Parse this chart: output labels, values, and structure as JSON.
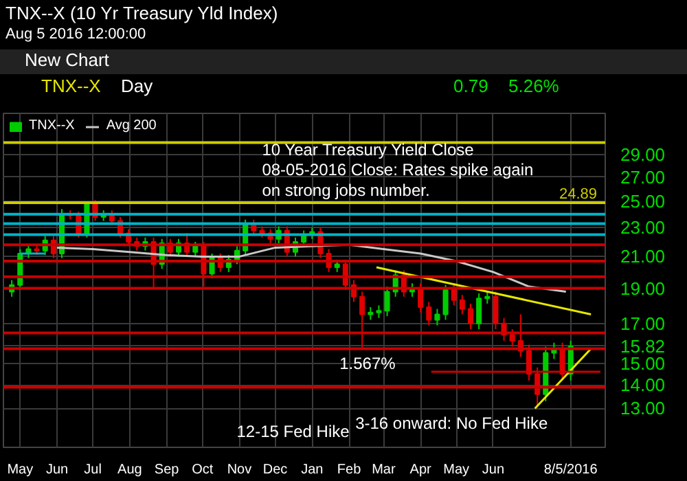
{
  "chart_data": {
    "type": "candlestick",
    "title": "TNX--X (10 Yr Treasury Yld Index)",
    "subtitle": "Aug 5 2016 12:00:00",
    "annotations": [
      "New Chart",
      "TNX--X",
      "Day",
      "0.79",
      "5.26%",
      "10 Year Treasury Yield Close",
      "08-05-2016 Close: Rates spike again",
      "on strong jobs number.",
      "1.567%",
      "12-15 Fed Hike",
      "3-16 onward: No Fed Hike"
    ],
    "series": [
      {
        "name": "TNX--X",
        "x": [
          "2015-04-24",
          "2015-05-01",
          "2015-05-08",
          "2015-05-15",
          "2015-05-22",
          "2015-05-29",
          "2015-06-05",
          "2015-06-12",
          "2015-06-19",
          "2015-06-26",
          "2015-07-03",
          "2015-07-10",
          "2015-07-17",
          "2015-07-24",
          "2015-07-31",
          "2015-08-07",
          "2015-08-14",
          "2015-08-21",
          "2015-08-28",
          "2015-09-04",
          "2015-09-11",
          "2015-09-18",
          "2015-09-25",
          "2015-10-02",
          "2015-10-09",
          "2015-10-16",
          "2015-10-23",
          "2015-10-30",
          "2015-11-06",
          "2015-11-13",
          "2015-11-20",
          "2015-11-27",
          "2015-12-04",
          "2015-12-11",
          "2015-12-18",
          "2015-12-25",
          "2016-01-01",
          "2016-01-08",
          "2016-01-15",
          "2016-01-22",
          "2016-01-29",
          "2016-02-05",
          "2016-02-12",
          "2016-02-19",
          "2016-02-26",
          "2016-03-04",
          "2016-03-11",
          "2016-03-18",
          "2016-03-25",
          "2016-04-01",
          "2016-04-08",
          "2016-04-15",
          "2016-04-22",
          "2016-04-29",
          "2016-05-06",
          "2016-05-13",
          "2016-05-20",
          "2016-05-27",
          "2016-06-03",
          "2016-06-10",
          "2016-06-17",
          "2016-06-24",
          "2016-07-01",
          "2016-07-08",
          "2016-07-15",
          "2016-07-22",
          "2016-07-29",
          "2016-08-05"
        ],
        "ohlc": [
          [
            18.8,
            19.5,
            18.5,
            19.2
          ],
          [
            19.2,
            21.5,
            18.9,
            21.2
          ],
          [
            21.2,
            21.8,
            20.9,
            21.5
          ],
          [
            21.5,
            21.8,
            21.1,
            21.4
          ],
          [
            21.4,
            22.4,
            21.1,
            22.1
          ],
          [
            22.1,
            22.4,
            20.9,
            21.2
          ],
          [
            21.2,
            24.4,
            20.9,
            24.0
          ],
          [
            24.0,
            24.3,
            23.6,
            23.9
          ],
          [
            23.9,
            24.2,
            22.3,
            22.6
          ],
          [
            22.6,
            25.0,
            22.3,
            24.8
          ],
          [
            24.8,
            25.1,
            23.5,
            23.8
          ],
          [
            23.8,
            24.3,
            23.5,
            24.0
          ],
          [
            24.0,
            24.3,
            23.2,
            23.5
          ],
          [
            23.5,
            23.8,
            22.3,
            22.6
          ],
          [
            22.6,
            22.9,
            21.7,
            22.0
          ],
          [
            22.0,
            22.3,
            21.4,
            21.7
          ],
          [
            21.7,
            22.3,
            21.4,
            22.0
          ],
          [
            22.0,
            22.3,
            19.0,
            20.5
          ],
          [
            20.5,
            22.2,
            20.2,
            21.9
          ],
          [
            21.9,
            22.2,
            21.0,
            21.3
          ],
          [
            21.3,
            22.2,
            21.0,
            21.9
          ],
          [
            21.9,
            22.6,
            21.0,
            21.3
          ],
          [
            21.3,
            22.0,
            21.0,
            21.7
          ],
          [
            21.7,
            22.0,
            19.1,
            19.9
          ],
          [
            19.9,
            21.2,
            19.6,
            20.9
          ],
          [
            20.9,
            21.2,
            20.0,
            20.3
          ],
          [
            20.3,
            21.1,
            20.0,
            20.8
          ],
          [
            20.8,
            21.7,
            20.5,
            21.4
          ],
          [
            21.4,
            23.6,
            21.1,
            23.3
          ],
          [
            23.3,
            23.6,
            22.5,
            22.8
          ],
          [
            22.8,
            23.1,
            22.3,
            22.6
          ],
          [
            22.6,
            22.9,
            21.9,
            22.2
          ],
          [
            22.2,
            23.1,
            21.9,
            22.8
          ],
          [
            22.8,
            23.1,
            21.0,
            21.3
          ],
          [
            21.3,
            22.3,
            21.0,
            22.0
          ],
          [
            22.0,
            22.8,
            21.7,
            22.5
          ],
          [
            22.5,
            23.0,
            22.2,
            22.7
          ],
          [
            22.7,
            23.0,
            20.9,
            21.2
          ],
          [
            21.2,
            21.5,
            20.0,
            20.3
          ],
          [
            20.3,
            20.8,
            20.0,
            20.5
          ],
          [
            20.5,
            20.8,
            18.9,
            19.2
          ],
          [
            19.2,
            19.5,
            18.2,
            18.5
          ],
          [
            18.5,
            18.8,
            15.67,
            17.5
          ],
          [
            17.5,
            17.9,
            17.2,
            17.6
          ],
          [
            17.6,
            18.0,
            17.3,
            17.7
          ],
          [
            17.7,
            19.1,
            17.4,
            18.8
          ],
          [
            18.8,
            20.1,
            18.5,
            19.8
          ],
          [
            19.8,
            20.1,
            18.5,
            18.8
          ],
          [
            18.8,
            19.3,
            18.5,
            19.0
          ],
          [
            19.0,
            19.3,
            17.6,
            17.9
          ],
          [
            17.9,
            18.2,
            16.9,
            17.2
          ],
          [
            17.2,
            17.8,
            16.9,
            17.5
          ],
          [
            17.5,
            19.2,
            17.2,
            18.9
          ],
          [
            18.9,
            19.2,
            18.0,
            18.3
          ],
          [
            18.3,
            18.6,
            17.5,
            17.8
          ],
          [
            17.8,
            18.1,
            16.7,
            17.0
          ],
          [
            17.0,
            18.7,
            16.7,
            18.4
          ],
          [
            18.4,
            18.8,
            18.1,
            18.5
          ],
          [
            18.5,
            18.8,
            16.7,
            17.0
          ],
          [
            17.0,
            17.3,
            16.1,
            16.4
          ],
          [
            16.4,
            16.7,
            15.8,
            16.1
          ],
          [
            16.1,
            17.5,
            15.3,
            15.6
          ],
          [
            15.6,
            15.9,
            14.2,
            14.5
          ],
          [
            14.5,
            14.8,
            13.1,
            13.6
          ],
          [
            13.6,
            15.8,
            13.3,
            15.5
          ],
          [
            15.5,
            16.0,
            15.2,
            15.7
          ],
          [
            15.7,
            16.0,
            14.2,
            14.5
          ],
          [
            14.5,
            16.1,
            14.2,
            15.82
          ]
        ],
        "colors": [
          "#00cc00",
          "#00cc00",
          "#00cc00",
          "#e00000",
          "#00cc00",
          "#e00000",
          "#00cc00",
          "#e00000",
          "#e00000",
          "#00cc00",
          "#e00000",
          "#00cc00",
          "#e00000",
          "#e00000",
          "#e00000",
          "#e00000",
          "#00cc00",
          "#e00000",
          "#00cc00",
          "#e00000",
          "#00cc00",
          "#e00000",
          "#00cc00",
          "#e00000",
          "#00cc00",
          "#e00000",
          "#00cc00",
          "#00cc00",
          "#00cc00",
          "#e00000",
          "#e00000",
          "#e00000",
          "#00cc00",
          "#e00000",
          "#00cc00",
          "#00cc00",
          "#00cc00",
          "#e00000",
          "#e00000",
          "#00cc00",
          "#e00000",
          "#e00000",
          "#e00000",
          "#00cc00",
          "#00cc00",
          "#00cc00",
          "#00cc00",
          "#e00000",
          "#00cc00",
          "#e00000",
          "#e00000",
          "#00cc00",
          "#00cc00",
          "#e00000",
          "#e00000",
          "#e00000",
          "#00cc00",
          "#00cc00",
          "#e00000",
          "#e00000",
          "#e00000",
          "#e00000",
          "#e00000",
          "#e00000",
          "#00cc00",
          "#00cc00",
          "#e00000",
          "#00cc00"
        ]
      },
      {
        "name": "Avg 200",
        "type": "line",
        "color": "#c8c8c8",
        "x": [
          "2015-06-01",
          "2015-07-01",
          "2015-08-01",
          "2015-09-01",
          "2015-10-01",
          "2015-11-01",
          "2015-12-01",
          "2016-01-01",
          "2016-02-01",
          "2016-03-01",
          "2016-04-01",
          "2016-05-01",
          "2016-06-01",
          "2016-07-01",
          "2016-08-01"
        ],
        "values": [
          21.6,
          21.5,
          21.3,
          21.1,
          21.0,
          21.0,
          21.6,
          21.7,
          21.8,
          21.5,
          21.2,
          20.7,
          20.0,
          19.1,
          18.8
        ]
      },
      {
        "type": "line",
        "color": "#00b4c8",
        "x": [
          "2015-05-01",
          "2015-05-22"
        ],
        "values": [
          21.2,
          21.2
        ]
      },
      {
        "type": "line",
        "color": "#e6e600",
        "x": [
          "2016-02-24",
          "2016-08-22"
        ],
        "values": [
          20.3,
          17.5
        ]
      },
      {
        "type": "line",
        "color": "#e6e600",
        "x": [
          "2016-07-06",
          "2016-08-22"
        ],
        "values": [
          13.0,
          15.7
        ]
      },
      {
        "type": "line",
        "color": "#cc0000",
        "x": [
          "2016-04-10",
          "2016-08-30"
        ],
        "values": [
          14.6,
          14.6
        ]
      }
    ],
    "ref_lines": [
      {
        "axis": "y",
        "value": 30.1,
        "color": "#cccc00"
      },
      {
        "axis": "y",
        "value": 24.89,
        "label": "24.89",
        "color": "#cccc00"
      },
      {
        "axis": "y",
        "value": 24.0,
        "color": "#00b4c8"
      },
      {
        "axis": "y",
        "value": 23.3,
        "color": "#00b4c8"
      },
      {
        "axis": "y",
        "value": 22.5,
        "color": "#00b4c8"
      },
      {
        "axis": "y",
        "value": 21.8,
        "color": "#cc0000"
      },
      {
        "axis": "y",
        "value": 20.7,
        "color": "#cc0000"
      },
      {
        "axis": "y",
        "value": 19.7,
        "color": "#cc0000"
      },
      {
        "axis": "y",
        "value": 19.0,
        "color": "#cc0000"
      },
      {
        "axis": "y",
        "value": 16.5,
        "color": "#cc0000"
      },
      {
        "axis": "y",
        "value": 15.7,
        "color": "#cc0000"
      },
      {
        "axis": "y",
        "value": 13.9,
        "color": "#cc0000"
      }
    ],
    "log": "y",
    "xlim": [
      "2015-04-17",
      "2016-09-03"
    ],
    "xticks": [
      {
        "value": "2015-05-01",
        "label": "May"
      },
      {
        "value": "2015-06-01",
        "label": "Jun"
      },
      {
        "value": "2015-07-01",
        "label": "Jul"
      },
      {
        "value": "2015-08-01",
        "label": "Aug"
      },
      {
        "value": "2015-09-01",
        "label": "Sep"
      },
      {
        "value": "2015-10-01",
        "label": "Oct"
      },
      {
        "value": "2015-11-01",
        "label": "Nov"
      },
      {
        "value": "2015-12-01",
        "label": "Dec"
      },
      {
        "value": "2016-01-01",
        "label": "Jan"
      },
      {
        "value": "2016-02-01",
        "label": "Feb"
      },
      {
        "value": "2016-03-01",
        "label": "Mar"
      },
      {
        "value": "2016-04-01",
        "label": "Apr"
      },
      {
        "value": "2016-05-01",
        "label": "May"
      },
      {
        "value": "2016-06-01",
        "label": "Jun"
      },
      {
        "value": "2016-08-05",
        "label": "8/5/2016"
      }
    ],
    "ylim": [
      11.5,
      33
    ],
    "yticks": [
      {
        "value": 13,
        "label": "13.00"
      },
      {
        "value": 14,
        "label": "14.00"
      },
      {
        "value": 15,
        "label": "15.00"
      },
      {
        "value": 15.82,
        "label": "15.82"
      },
      {
        "value": 17,
        "label": "17.00"
      },
      {
        "value": 19,
        "label": "19.00"
      },
      {
        "value": 21,
        "label": "21.00"
      },
      {
        "value": 23,
        "label": "23.00"
      },
      {
        "value": 25,
        "label": "25.00"
      },
      {
        "value": 27,
        "label": "27.00"
      },
      {
        "value": 29,
        "label": "29.00"
      }
    ],
    "grid": true,
    "legend": "top left"
  }
}
